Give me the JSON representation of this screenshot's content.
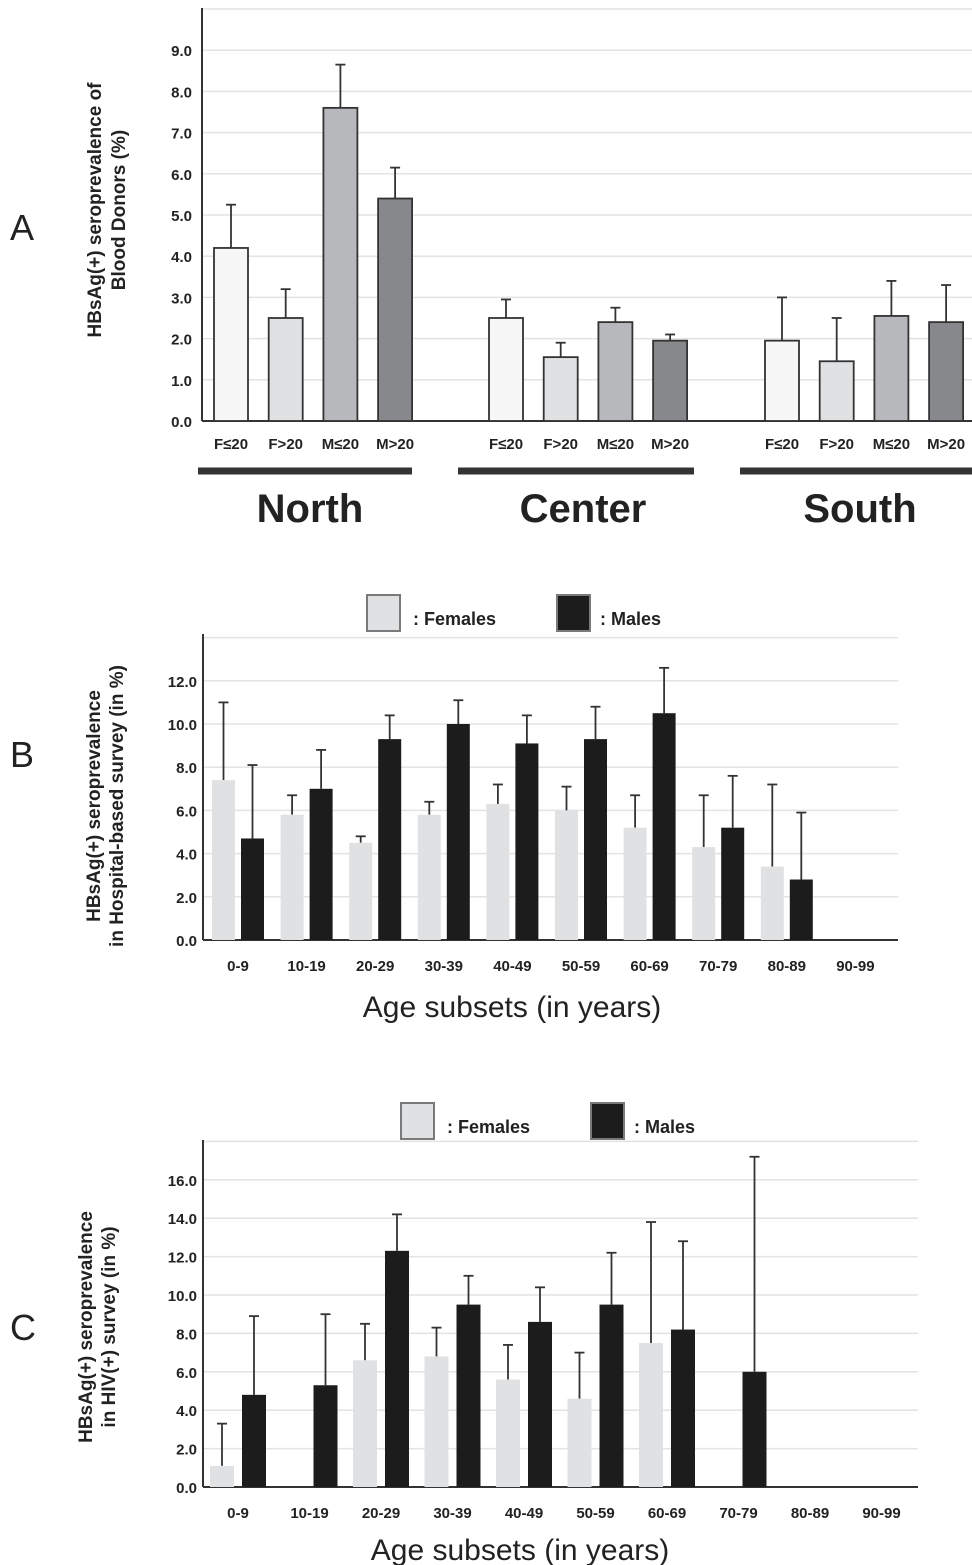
{
  "chart_data": [
    {
      "panel": "A",
      "type": "bar",
      "ylabel": [
        "HBsAg(+) seroprevalence of",
        "Blood Donors  (%)"
      ],
      "ylim": [
        0,
        10
      ],
      "yticks": [
        "0.0",
        "1.0",
        "2.0",
        "3.0",
        "4.0",
        "5.0",
        "6.0",
        "7.0",
        "8.0",
        "9.0"
      ],
      "grid": true,
      "groups": [
        {
          "name": "North",
          "categories": [
            "F≤20",
            "F>20",
            "M≤20",
            "M>20"
          ],
          "values": [
            4.2,
            2.5,
            7.6,
            5.4
          ],
          "errors": [
            1.05,
            0.7,
            1.05,
            0.75
          ]
        },
        {
          "name": "Center",
          "categories": [
            "F≤20",
            "F>20",
            "M≤20",
            "M>20"
          ],
          "values": [
            2.5,
            1.55,
            2.4,
            1.95
          ],
          "errors": [
            0.45,
            0.35,
            0.35,
            0.15
          ]
        },
        {
          "name": "South",
          "categories": [
            "F≤20",
            "F>20",
            "M≤20",
            "M>20"
          ],
          "values": [
            1.95,
            1.45,
            2.55,
            2.4
          ],
          "errors": [
            1.05,
            1.05,
            0.85,
            0.9
          ]
        }
      ],
      "bar_colors": [
        "#f7f7f7",
        "#e0e1e3",
        "#b6b8bc",
        "#86888c"
      ]
    },
    {
      "panel": "B",
      "type": "bar",
      "ylabel": [
        "HBsAg(+) seroprevalence",
        "in Hospital-based survey (in %)"
      ],
      "xlabel": "Age subsets (in years)",
      "ylim": [
        0,
        14
      ],
      "yticks": [
        "0.0",
        "2.0",
        "4.0",
        "6.0",
        "8.0",
        "10.0",
        "12.0"
      ],
      "grid": true,
      "legend_placement": "top",
      "categories": [
        "0-9",
        "10-19",
        "20-29",
        "30-39",
        "40-49",
        "50-59",
        "60-69",
        "70-79",
        "80-89",
        "90-99"
      ],
      "series": [
        {
          "name": ": Females",
          "values": [
            7.4,
            5.8,
            4.5,
            5.8,
            6.3,
            6.0,
            5.2,
            4.3,
            3.4,
            0
          ],
          "errors": [
            3.6,
            0.9,
            0.3,
            0.6,
            0.9,
            1.1,
            1.5,
            2.4,
            3.8,
            0
          ]
        },
        {
          "name": ": Males",
          "values": [
            4.7,
            7.0,
            9.3,
            10.0,
            9.1,
            9.3,
            10.5,
            5.2,
            2.8,
            0
          ],
          "errors": [
            3.4,
            1.8,
            1.1,
            1.1,
            1.3,
            1.5,
            2.1,
            2.4,
            3.1,
            0
          ]
        }
      ],
      "colors": {
        "Females": "#e0e1e3",
        "Males": "#1c1c1c"
      }
    },
    {
      "panel": "C",
      "type": "bar",
      "ylabel": [
        "HBsAg(+) seroprevalence",
        "in HIV(+) survey (in %)"
      ],
      "xlabel": "Age subsets (in years)",
      "ylim": [
        0,
        18
      ],
      "yticks": [
        "0.0",
        "2.0",
        "4.0",
        "6.0",
        "8.0",
        "10.0",
        "12.0",
        "14.0",
        "16.0"
      ],
      "grid": true,
      "legend_placement": "top",
      "categories": [
        "0-9",
        "10-19",
        "20-29",
        "30-39",
        "40-49",
        "50-59",
        "60-69",
        "70-79",
        "80-89",
        "90-99"
      ],
      "series": [
        {
          "name": ": Females",
          "values": [
            1.1,
            0,
            6.6,
            6.8,
            5.6,
            4.6,
            7.5,
            0,
            0,
            0
          ],
          "errors": [
            2.2,
            0,
            1.9,
            1.5,
            1.8,
            2.4,
            6.3,
            0,
            0,
            0
          ]
        },
        {
          "name": ": Males",
          "values": [
            4.8,
            5.3,
            12.3,
            9.5,
            8.6,
            9.5,
            8.2,
            6.0,
            0,
            0
          ],
          "errors": [
            4.1,
            3.7,
            1.9,
            1.5,
            1.8,
            2.7,
            4.6,
            11.2,
            0,
            0
          ]
        }
      ],
      "colors": {
        "Females": "#e0e1e3",
        "Males": "#1c1c1c"
      }
    }
  ],
  "panel_labels": {
    "a": "A",
    "b": "B",
    "c": "C"
  }
}
